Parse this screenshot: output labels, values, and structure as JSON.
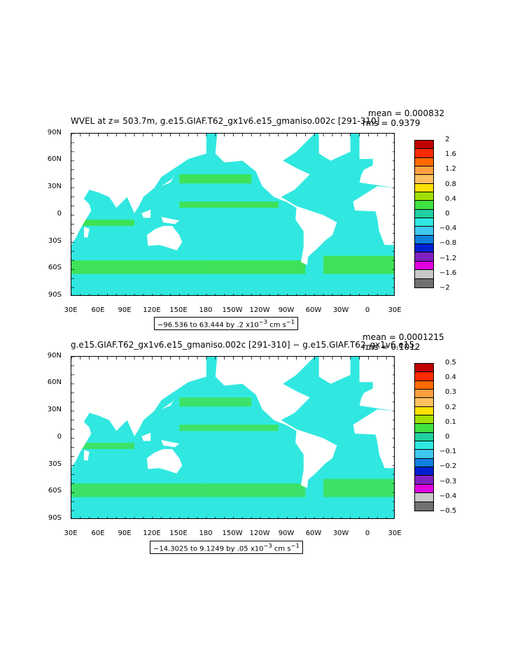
{
  "panels": [
    {
      "title": "WVEL at z= 503.7m, g.e15.GIAF.T62_gx1v6.e15_gmaniso.002c [291-310]",
      "mean": "mean = 0.000832",
      "rms": "rms = 0.9379",
      "range_text": "−96.536 to 63.444 by .2 x10",
      "range_exp": "−3",
      "range_units": " cm s",
      "range_units_exp": "−1",
      "levels": [
        "2",
        "1.6",
        "1.2",
        "0.8",
        "0.4",
        "0",
        "−0.4",
        "−0.8",
        "−1.2",
        "−1.6",
        "−2"
      ],
      "colors": [
        "#c00000",
        "#ff2a00",
        "#ff6a00",
        "#ffa040",
        "#ffc060",
        "#ffe000",
        "#a0e000",
        "#40e040",
        "#20d0a0",
        "#30e8e0",
        "#40c8f0",
        "#1080e0",
        "#0020d0",
        "#8020c0",
        "#e000e0",
        "#c8c8c8",
        "#707070"
      ]
    },
    {
      "title": "g.e15.GIAF.T62_gx1v6.e15_gmaniso.002c [291-310] − g.e15.GIAF.T62_gx1v6.e15_",
      "mean": "mean = 0.0001215",
      "rms": "rms = 0.1012",
      "range_text": "−14.3025 to 9.1249 by .05 x10",
      "range_exp": "−3",
      "range_units": " cm s",
      "range_units_exp": "−1",
      "levels": [
        "0.5",
        "0.4",
        "0.3",
        "0.2",
        "0.1",
        "0",
        "−0.1",
        "−0.2",
        "−0.3",
        "−0.4",
        "−0.5"
      ],
      "colors": [
        "#c00000",
        "#ff2a00",
        "#ff6a00",
        "#ffa040",
        "#ffc060",
        "#ffe000",
        "#a0e000",
        "#40e040",
        "#20d0a0",
        "#30e8e0",
        "#40c8f0",
        "#1080e0",
        "#0020d0",
        "#8020c0",
        "#e000e0",
        "#c8c8c8",
        "#707070"
      ]
    }
  ],
  "lat_labels": [
    "90N",
    "60N",
    "30N",
    "0",
    "30S",
    "60S",
    "90S"
  ],
  "lon_labels": [
    "30E",
    "60E",
    "90E",
    "120E",
    "150E",
    "180",
    "150W",
    "120W",
    "90W",
    "60W",
    "30W",
    "0",
    "30E"
  ],
  "ocean_color": "#30e8e0",
  "ocean_secondary_color": "#40e040",
  "land_color": "#ffffff"
}
